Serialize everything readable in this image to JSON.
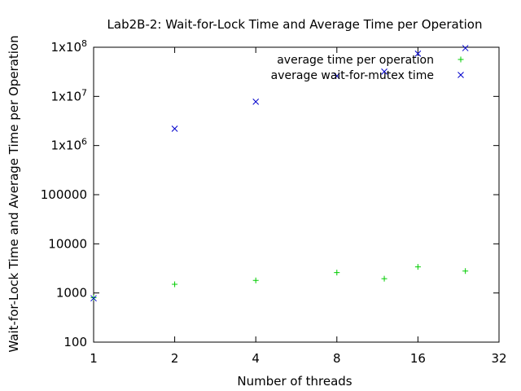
{
  "chart_data": {
    "type": "scatter",
    "title": "Lab2B-2: Wait-for-Lock Time and Average Time per Operation",
    "xlabel": "Number of threads",
    "ylabel": "Wait-for-Lock Time and Average Time per Operation",
    "x_scale": "log2",
    "y_scale": "log10",
    "xlim": [
      1,
      32
    ],
    "ylim": [
      100,
      100000000
    ],
    "x_ticks": [
      {
        "value": 1,
        "label": "1"
      },
      {
        "value": 2,
        "label": "2"
      },
      {
        "value": 4,
        "label": "4"
      },
      {
        "value": 8,
        "label": "8"
      },
      {
        "value": 16,
        "label": "16"
      },
      {
        "value": 32,
        "label": "32"
      }
    ],
    "y_ticks": [
      {
        "value": 100,
        "label": "100"
      },
      {
        "value": 1000,
        "label": "1000"
      },
      {
        "value": 10000,
        "label": "10000"
      },
      {
        "value": 100000,
        "label": "100000"
      },
      {
        "value": 1000000,
        "label": "1x10",
        "exp": "6"
      },
      {
        "value": 10000000,
        "label": "1x10",
        "exp": "7"
      },
      {
        "value": 100000000,
        "label": "1x10",
        "exp": "8"
      }
    ],
    "legend_position": "top-right",
    "grid": false,
    "series": [
      {
        "name": "average time per operation",
        "marker": "plus",
        "color": "#00cc00",
        "points": [
          {
            "x": 1,
            "y": 800
          },
          {
            "x": 2,
            "y": 1500
          },
          {
            "x": 4,
            "y": 1800
          },
          {
            "x": 8,
            "y": 2600
          },
          {
            "x": 12,
            "y": 1950
          },
          {
            "x": 16,
            "y": 3400
          },
          {
            "x": 24,
            "y": 2800
          }
        ]
      },
      {
        "name": "average wait-for-mutex time",
        "marker": "cross",
        "color": "#0000cc",
        "points": [
          {
            "x": 1,
            "y": 780
          },
          {
            "x": 2,
            "y": 2200000
          },
          {
            "x": 4,
            "y": 7800000
          },
          {
            "x": 8,
            "y": 26000000
          },
          {
            "x": 12,
            "y": 32000000
          },
          {
            "x": 16,
            "y": 74000000
          },
          {
            "x": 24,
            "y": 96000000
          }
        ]
      }
    ]
  }
}
